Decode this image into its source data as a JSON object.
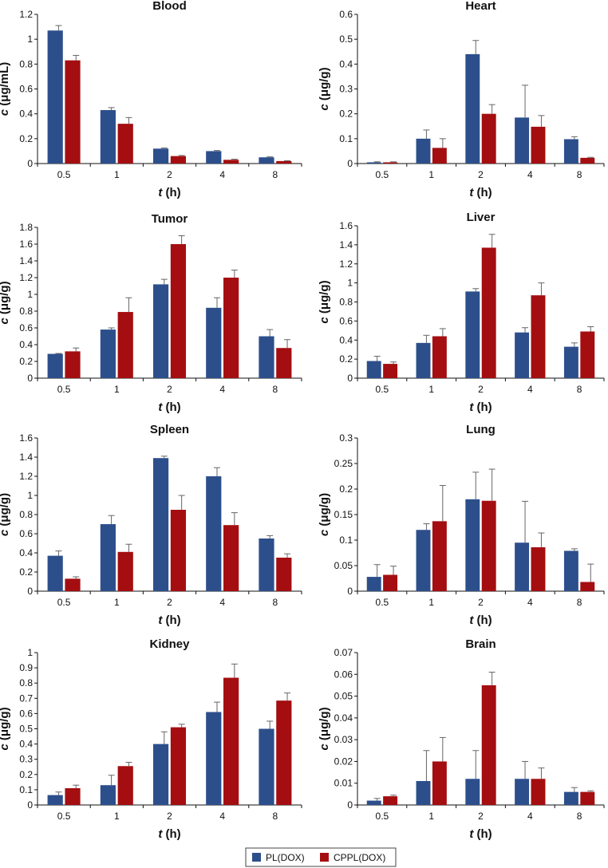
{
  "legend": {
    "title": "",
    "placement": "bottom-center"
  },
  "series_names": [
    "PL(DOX)",
    "CPPL(DOX)"
  ],
  "colors": {
    "PL(DOX)": "#2c4f8c",
    "CPPL(DOX)": "#a40e10",
    "axis": "#111111",
    "error_bar": "#666666"
  },
  "chart_data": [
    {
      "type": "bar",
      "title": "Blood",
      "categories": [
        "0.5",
        "1",
        "2",
        "4",
        "8"
      ],
      "xlabel_var": "t",
      "xlabel_unit": "(h)",
      "ylabel_var": "c",
      "ylabel_unit": "(μg/mL)",
      "ylim": [
        0,
        1.2
      ],
      "yticks": [
        "0",
        "0.2",
        "0.4",
        "0.6",
        "0.8",
        "1",
        "1.2"
      ],
      "ystep": 0.2,
      "series": [
        {
          "name": "PL(DOX)",
          "values": [
            1.07,
            0.43,
            0.12,
            0.1,
            0.05
          ],
          "errors": [
            0.04,
            0.02,
            0.005,
            0.005,
            0.004
          ]
        },
        {
          "name": "CPPL(DOX)",
          "values": [
            0.83,
            0.32,
            0.06,
            0.03,
            0.02
          ],
          "errors": [
            0.04,
            0.05,
            0.005,
            0.005,
            0.003
          ]
        }
      ]
    },
    {
      "type": "bar",
      "title": "Heart",
      "categories": [
        "0.5",
        "1",
        "2",
        "4",
        "8"
      ],
      "xlabel_var": "t",
      "xlabel_unit": "(h)",
      "ylabel_var": "c",
      "ylabel_unit": "(μg/g)",
      "ylim": [
        0,
        0.6
      ],
      "yticks": [
        "0",
        "0.1",
        "0.2",
        "0.3",
        "0.4",
        "0.5",
        "0.6"
      ],
      "ystep": 0.1,
      "series": [
        {
          "name": "PL(DOX)",
          "values": [
            0.005,
            0.1,
            0.44,
            0.185,
            0.098
          ],
          "errors": [
            0.002,
            0.035,
            0.055,
            0.13,
            0.01
          ]
        },
        {
          "name": "CPPL(DOX)",
          "values": [
            0.005,
            0.063,
            0.2,
            0.148,
            0.023
          ],
          "errors": [
            0.002,
            0.037,
            0.037,
            0.045,
            0.002
          ]
        }
      ]
    },
    {
      "type": "bar",
      "title": "Tumor",
      "categories": [
        "0.5",
        "1",
        "2",
        "4",
        "8"
      ],
      "xlabel_var": "t",
      "xlabel_unit": "(h)",
      "ylabel_var": "c",
      "ylabel_unit": "(μg/g)",
      "ylim": [
        0,
        1.8
      ],
      "yticks": [
        "0",
        "0.2",
        "0.4",
        "0.6",
        "0.8",
        "1",
        "1.2",
        "1.4",
        "1.6",
        "1.8"
      ],
      "ystep": 0.2,
      "series": [
        {
          "name": "PL(DOX)",
          "values": [
            0.29,
            0.58,
            1.12,
            0.84,
            0.5
          ],
          "errors": [
            0.005,
            0.02,
            0.06,
            0.12,
            0.08
          ]
        },
        {
          "name": "CPPL(DOX)",
          "values": [
            0.32,
            0.79,
            1.6,
            1.2,
            0.36
          ],
          "errors": [
            0.04,
            0.17,
            0.1,
            0.09,
            0.1
          ]
        }
      ]
    },
    {
      "type": "bar",
      "title": "Liver",
      "categories": [
        "0.5",
        "1",
        "2",
        "4",
        "8"
      ],
      "xlabel_var": "t",
      "xlabel_unit": "(h)",
      "ylabel_var": "c",
      "ylabel_unit": "(μg/g)",
      "ylim": [
        0,
        1.6
      ],
      "yticks": [
        "0",
        "0.2",
        "0.4",
        "0.6",
        "0.8",
        "1",
        "1.2",
        "1.4",
        "1.6"
      ],
      "ystep": 0.2,
      "series": [
        {
          "name": "PL(DOX)",
          "values": [
            0.18,
            0.37,
            0.91,
            0.48,
            0.33
          ],
          "errors": [
            0.05,
            0.08,
            0.03,
            0.05,
            0.04
          ]
        },
        {
          "name": "CPPL(DOX)",
          "values": [
            0.15,
            0.44,
            1.37,
            0.87,
            0.49
          ],
          "errors": [
            0.02,
            0.08,
            0.14,
            0.13,
            0.05
          ]
        }
      ]
    },
    {
      "type": "bar",
      "title": "Spleen",
      "categories": [
        "0.5",
        "1",
        "2",
        "4",
        "8"
      ],
      "xlabel_var": "t",
      "xlabel_unit": "(h)",
      "ylabel_var": "c",
      "ylabel_unit": "(μg/g)",
      "ylim": [
        0,
        1.6
      ],
      "yticks": [
        "0",
        "0.2",
        "0.4",
        "0.6",
        "0.8",
        "1",
        "1.2",
        "1.4",
        "1.6"
      ],
      "ystep": 0.2,
      "series": [
        {
          "name": "PL(DOX)",
          "values": [
            0.37,
            0.7,
            1.39,
            1.2,
            0.55
          ],
          "errors": [
            0.05,
            0.09,
            0.02,
            0.09,
            0.03
          ]
        },
        {
          "name": "CPPL(DOX)",
          "values": [
            0.13,
            0.41,
            0.85,
            0.69,
            0.35
          ],
          "errors": [
            0.02,
            0.08,
            0.15,
            0.13,
            0.04
          ]
        }
      ]
    },
    {
      "type": "bar",
      "title": "Lung",
      "categories": [
        "0.5",
        "1",
        "2",
        "4",
        "8"
      ],
      "xlabel_var": "t",
      "xlabel_unit": "(h)",
      "ylabel_var": "c",
      "ylabel_unit": "(μg/g)",
      "ylim": [
        0,
        0.3
      ],
      "yticks": [
        "0",
        "0.05",
        "0.1",
        "0.15",
        "0.2",
        "0.25",
        "0.3"
      ],
      "ystep": 0.05,
      "series": [
        {
          "name": "PL(DOX)",
          "values": [
            0.028,
            0.12,
            0.18,
            0.095,
            0.079
          ],
          "errors": [
            0.024,
            0.012,
            0.053,
            0.081,
            0.004
          ]
        },
        {
          "name": "CPPL(DOX)",
          "values": [
            0.032,
            0.137,
            0.177,
            0.086,
            0.018
          ],
          "errors": [
            0.017,
            0.07,
            0.062,
            0.028,
            0.035
          ]
        }
      ]
    },
    {
      "type": "bar",
      "title": "Kidney",
      "categories": [
        "0.5",
        "1",
        "2",
        "4",
        "8"
      ],
      "xlabel_var": "t",
      "xlabel_unit": "(h)",
      "ylabel_var": "c",
      "ylabel_unit": "(μg/g)",
      "ylim": [
        0,
        1
      ],
      "yticks": [
        "0",
        "0.1",
        "0.2",
        "0.3",
        "0.4",
        "0.5",
        "0.6",
        "0.7",
        "0.8",
        "0.9",
        "1"
      ],
      "ystep": 0.1,
      "series": [
        {
          "name": "PL(DOX)",
          "values": [
            0.065,
            0.13,
            0.4,
            0.61,
            0.5
          ],
          "errors": [
            0.02,
            0.065,
            0.08,
            0.065,
            0.05
          ]
        },
        {
          "name": "CPPL(DOX)",
          "values": [
            0.11,
            0.255,
            0.51,
            0.835,
            0.685
          ],
          "errors": [
            0.02,
            0.025,
            0.02,
            0.09,
            0.05
          ]
        }
      ]
    },
    {
      "type": "bar",
      "title": "Brain",
      "categories": [
        "0.5",
        "1",
        "2",
        "4",
        "8"
      ],
      "xlabel_var": "t",
      "xlabel_unit": "(h)",
      "ylabel_var": "c",
      "ylabel_unit": "(μg/g)",
      "ylim": [
        0,
        0.07
      ],
      "yticks": [
        "0",
        "0.01",
        "0.02",
        "0.03",
        "0.04",
        "0.05",
        "0.06",
        "0.07"
      ],
      "ystep": 0.01,
      "series": [
        {
          "name": "PL(DOX)",
          "values": [
            0.002,
            0.011,
            0.012,
            0.012,
            0.006
          ],
          "errors": [
            0.001,
            0.014,
            0.013,
            0.008,
            0.002
          ]
        },
        {
          "name": "CPPL(DOX)",
          "values": [
            0.004,
            0.02,
            0.055,
            0.012,
            0.006
          ],
          "errors": [
            0.0005,
            0.011,
            0.006,
            0.005,
            0.0005
          ]
        }
      ]
    }
  ]
}
